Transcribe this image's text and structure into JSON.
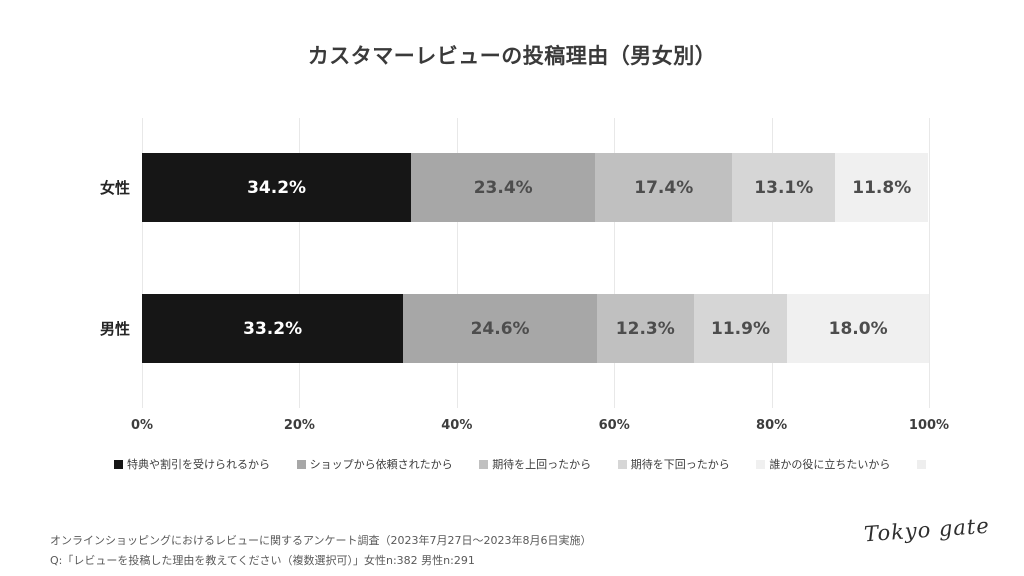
{
  "title": "カスタマーレビューの投稿理由（男女別）",
  "chart_data": {
    "type": "bar",
    "variant": "horizontal-stacked",
    "title": "カスタマーレビューの投稿理由（男女別）",
    "categories": [
      "女性",
      "男性"
    ],
    "series": [
      {
        "name": "特典や割引を受けられるから",
        "color": "#161616",
        "values": [
          34.2,
          33.2
        ]
      },
      {
        "name": "ショップから依頼されたから",
        "color": "#a7a7a7",
        "values": [
          23.4,
          24.6
        ]
      },
      {
        "name": "期待を上回ったから",
        "color": "#c0c0c0",
        "values": [
          17.4,
          12.3
        ]
      },
      {
        "name": "期待を下回ったから",
        "color": "#d6d6d6",
        "values": [
          13.1,
          11.9
        ]
      },
      {
        "name": "誰かの役に立ちたいから",
        "color": "#f0f0f0",
        "values": [
          11.8,
          18.0
        ]
      },
      {
        "name": "",
        "color": "#eeeeee",
        "values": [
          0,
          0
        ]
      }
    ],
    "x_ticks": [
      "0%",
      "20%",
      "40%",
      "60%",
      "80%",
      "100%"
    ],
    "xlim": [
      0,
      100
    ],
    "grid": true,
    "legend_position": "bottom",
    "value_label_format": "0.0%"
  },
  "footer": {
    "line1": "オンラインショッピングにおけるレビューに関するアンケート調査（2023年7月27日〜2023年8月6日実施）",
    "line2": "Q:「レビューを投稿した理由を教えてください（複数選択可）」女性n:382 男性n:291"
  },
  "logo": "Tokyo gate"
}
